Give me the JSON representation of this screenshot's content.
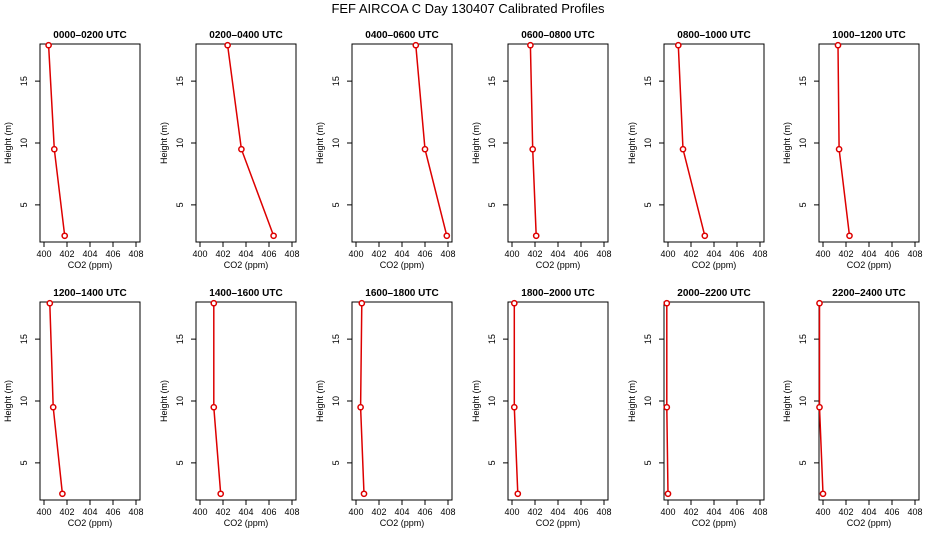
{
  "figure": {
    "title": "FEF AIRCOA C  Day 130407  Calibrated Profiles"
  },
  "chart_data": [
    {
      "type": "line",
      "title": "0000–0200 UTC",
      "xlabel": "CO2 (ppm)",
      "ylabel": "Height (m)",
      "xlim": [
        400,
        408
      ],
      "ylim": [
        2,
        18
      ],
      "xticks": [
        400,
        402,
        404,
        406,
        408
      ],
      "yticks": [
        5,
        10,
        15
      ],
      "x": [
        400.4,
        400.9,
        401.8
      ],
      "y": [
        17.9,
        9.5,
        2.5
      ]
    },
    {
      "type": "line",
      "title": "0200–0400 UTC",
      "xlabel": "CO2 (ppm)",
      "ylabel": "Height (m)",
      "xlim": [
        400,
        408
      ],
      "ylim": [
        2,
        18
      ],
      "xticks": [
        400,
        402,
        404,
        406,
        408
      ],
      "yticks": [
        5,
        10,
        15
      ],
      "x": [
        402.4,
        403.6,
        406.4
      ],
      "y": [
        17.9,
        9.5,
        2.5
      ]
    },
    {
      "type": "line",
      "title": "0400–0600 UTC",
      "xlabel": "CO2 (ppm)",
      "ylabel": "Height (m)",
      "xlim": [
        400,
        408
      ],
      "ylim": [
        2,
        18
      ],
      "xticks": [
        400,
        402,
        404,
        406,
        408
      ],
      "yticks": [
        5,
        10,
        15
      ],
      "x": [
        405.2,
        406.0,
        407.9
      ],
      "y": [
        17.9,
        9.5,
        2.5
      ]
    },
    {
      "type": "line",
      "title": "0600–0800 UTC",
      "xlabel": "CO2 (ppm)",
      "ylabel": "Height (m)",
      "xlim": [
        400,
        408
      ],
      "ylim": [
        2,
        18
      ],
      "xticks": [
        400,
        402,
        404,
        406,
        408
      ],
      "yticks": [
        5,
        10,
        15
      ],
      "x": [
        401.6,
        401.8,
        402.1
      ],
      "y": [
        17.9,
        9.5,
        2.5
      ]
    },
    {
      "type": "line",
      "title": "0800–1000 UTC",
      "xlabel": "CO2 (ppm)",
      "ylabel": "Height (m)",
      "xlim": [
        400,
        408
      ],
      "ylim": [
        2,
        18
      ],
      "xticks": [
        400,
        402,
        404,
        406,
        408
      ],
      "yticks": [
        5,
        10,
        15
      ],
      "x": [
        400.9,
        401.3,
        403.2
      ],
      "y": [
        17.9,
        9.5,
        2.5
      ]
    },
    {
      "type": "line",
      "title": "1000–1200 UTC",
      "xlabel": "CO2 (ppm)",
      "ylabel": "Height (m)",
      "xlim": [
        400,
        408
      ],
      "ylim": [
        2,
        18
      ],
      "xticks": [
        400,
        402,
        404,
        406,
        408
      ],
      "yticks": [
        5,
        10,
        15
      ],
      "x": [
        401.3,
        401.4,
        402.3
      ],
      "y": [
        17.9,
        9.5,
        2.5
      ]
    },
    {
      "type": "line",
      "title": "1200–1400 UTC",
      "xlabel": "CO2 (ppm)",
      "ylabel": "Height (m)",
      "xlim": [
        400,
        408
      ],
      "ylim": [
        2,
        18
      ],
      "xticks": [
        400,
        402,
        404,
        406,
        408
      ],
      "yticks": [
        5,
        10,
        15
      ],
      "x": [
        400.5,
        400.8,
        401.6
      ],
      "y": [
        17.9,
        9.5,
        2.5
      ]
    },
    {
      "type": "line",
      "title": "1400–1600 UTC",
      "xlabel": "CO2 (ppm)",
      "ylabel": "Height (m)",
      "xlim": [
        400,
        408
      ],
      "ylim": [
        2,
        18
      ],
      "xticks": [
        400,
        402,
        404,
        406,
        408
      ],
      "yticks": [
        5,
        10,
        15
      ],
      "x": [
        401.2,
        401.2,
        401.8
      ],
      "y": [
        17.9,
        9.5,
        2.5
      ]
    },
    {
      "type": "line",
      "title": "1600–1800 UTC",
      "xlabel": "CO2 (ppm)",
      "ylabel": "Height (m)",
      "xlim": [
        400,
        408
      ],
      "ylim": [
        2,
        18
      ],
      "xticks": [
        400,
        402,
        404,
        406,
        408
      ],
      "yticks": [
        5,
        10,
        15
      ],
      "x": [
        400.5,
        400.4,
        400.7
      ],
      "y": [
        17.9,
        9.5,
        2.5
      ]
    },
    {
      "type": "line",
      "title": "1800–2000 UTC",
      "xlabel": "CO2 (ppm)",
      "ylabel": "Height (m)",
      "xlim": [
        400,
        408
      ],
      "ylim": [
        2,
        18
      ],
      "xticks": [
        400,
        402,
        404,
        406,
        408
      ],
      "yticks": [
        5,
        10,
        15
      ],
      "x": [
        400.2,
        400.2,
        400.5
      ],
      "y": [
        17.9,
        9.5,
        2.5
      ]
    },
    {
      "type": "line",
      "title": "2000–2200 UTC",
      "xlabel": "CO2 (ppm)",
      "ylabel": "Height (m)",
      "xlim": [
        400,
        408
      ],
      "ylim": [
        2,
        18
      ],
      "xticks": [
        400,
        402,
        404,
        406,
        408
      ],
      "yticks": [
        5,
        10,
        15
      ],
      "x": [
        399.9,
        399.9,
        400.0
      ],
      "y": [
        17.9,
        9.5,
        2.5
      ]
    },
    {
      "type": "line",
      "title": "2200–2400 UTC",
      "xlabel": "CO2 (ppm)",
      "ylabel": "Height (m)",
      "xlim": [
        400,
        408
      ],
      "ylim": [
        2,
        18
      ],
      "xticks": [
        400,
        402,
        404,
        406,
        408
      ],
      "yticks": [
        5,
        10,
        15
      ],
      "x": [
        399.7,
        399.7,
        400.0
      ],
      "y": [
        17.9,
        9.5,
        2.5
      ]
    }
  ],
  "style": {
    "line_color": "#dd0000",
    "marker_color": "#dd0000",
    "axis_color": "#000000"
  }
}
